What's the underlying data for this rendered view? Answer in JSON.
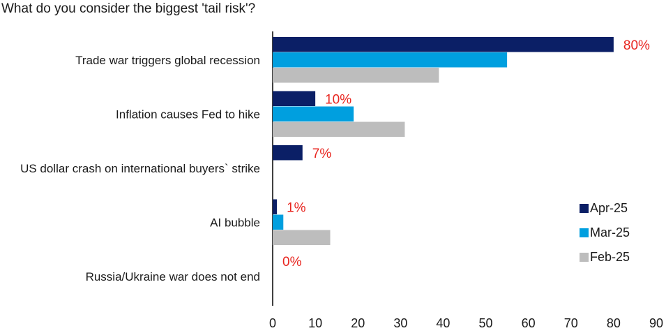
{
  "chart_data": {
    "type": "bar",
    "orientation": "horizontal",
    "title": "What do you consider the biggest 'tail risk'?",
    "categories": [
      "Trade war triggers global recession",
      "Inflation causes Fed to hike",
      "US dollar crash on international buyers` strike",
      "AI bubble",
      "Russia/Ukraine war does not end"
    ],
    "series": [
      {
        "name": "Apr-25",
        "color": "#0b1f66",
        "values": [
          80,
          10,
          7,
          1,
          0
        ]
      },
      {
        "name": "Mar-25",
        "color": "#009fdf",
        "values": [
          55,
          19,
          null,
          2.5,
          null
        ]
      },
      {
        "name": "Feb-25",
        "color": "#bdbdbd",
        "values": [
          39,
          31,
          null,
          13.5,
          null
        ]
      }
    ],
    "data_labels": [
      "80%",
      "10%",
      "7%",
      "1%",
      "0%"
    ],
    "xlim": [
      0,
      90
    ],
    "xticks": [
      0,
      10,
      20,
      30,
      40,
      50,
      60,
      70,
      80,
      90
    ],
    "legend_position": "bottom-right",
    "grid": false
  }
}
